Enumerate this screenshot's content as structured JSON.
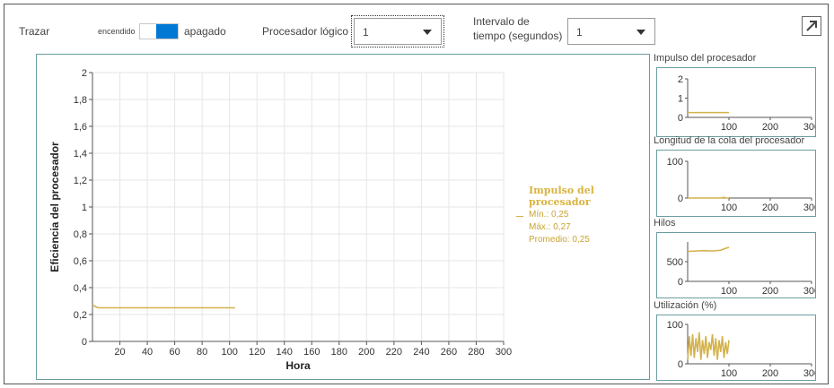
{
  "toolbar": {
    "trace_label": "Trazar",
    "toggle_on_label": "encendido",
    "toggle_off_label": "apagado",
    "logical_processor_label": "Procesador lógico",
    "logical_processor_value": "1",
    "interval_label_line1": "Intervalo de",
    "interval_label_line2": "tiempo (segundos)",
    "interval_value": "1"
  },
  "colors": {
    "series": "#d4b24c",
    "accent": "#0078d4",
    "panel_border": "#6b9da0"
  },
  "main_chart": {
    "legend_title_line1": "Impulso del",
    "legend_title_line2": "procesador",
    "legend_min": "Mín.: 0,25",
    "legend_max": "Máx.: 0,27",
    "legend_avg": "Promedio: 0,25"
  },
  "side_charts": {
    "c1_title": "Impulso del procesador",
    "c2_title": "Longitud de la cola del procesador",
    "c3_title": "Hilos",
    "c4_title": "Utilización (%)"
  },
  "chart_data": [
    {
      "type": "line",
      "title": "",
      "xlabel": "Hora",
      "ylabel": "Eficiencia del procesador",
      "xlim": [
        0,
        300
      ],
      "ylim": [
        0,
        2
      ],
      "x_ticks": [
        "20",
        "40",
        "60",
        "80",
        "100",
        "120",
        "140",
        "160",
        "180",
        "200",
        "220",
        "240",
        "260",
        "280",
        "300"
      ],
      "y_ticks": [
        "0",
        "0,2",
        "0,4",
        "0,6",
        "0,8",
        "1",
        "1,2",
        "1,4",
        "1,6",
        "1,8",
        "2"
      ],
      "grid": true,
      "legend_position": "right",
      "series": [
        {
          "name": "Impulso del procesador",
          "x": [
            0,
            2,
            4,
            6,
            10,
            20,
            40,
            60,
            80,
            100,
            104
          ],
          "y": [
            0.27,
            0.26,
            0.25,
            0.25,
            0.25,
            0.25,
            0.25,
            0.25,
            0.25,
            0.25,
            0.25
          ]
        }
      ]
    },
    {
      "type": "line",
      "title": "Impulso del procesador",
      "xlim": [
        0,
        300
      ],
      "ylim": [
        0,
        2
      ],
      "x_ticks": [
        "100",
        "200",
        "300"
      ],
      "y_ticks": [
        "0",
        "1",
        "2"
      ],
      "series": [
        {
          "x": [
            0,
            100
          ],
          "y": [
            0.25,
            0.25
          ]
        }
      ]
    },
    {
      "type": "line",
      "title": "Longitud de la cola del procesador",
      "xlim": [
        0,
        300
      ],
      "ylim": [
        0,
        100
      ],
      "x_ticks": [
        "100",
        "200",
        "300"
      ],
      "y_ticks": [
        "0",
        "100"
      ],
      "series": [
        {
          "x": [
            0,
            80,
            88,
            92,
            100
          ],
          "y": [
            0,
            0,
            2,
            0,
            0
          ]
        }
      ]
    },
    {
      "type": "line",
      "title": "Hilos",
      "xlim": [
        0,
        300
      ],
      "ylim": [
        0,
        1000
      ],
      "x_ticks": [
        "100",
        "200",
        "300"
      ],
      "y_ticks": [
        "0",
        "500"
      ],
      "series": [
        {
          "x": [
            0,
            20,
            40,
            60,
            80,
            90,
            95,
            100
          ],
          "y": [
            760,
            770,
            780,
            770,
            790,
            830,
            850,
            860
          ]
        }
      ]
    },
    {
      "type": "line",
      "title": "Utilización (%)",
      "xlim": [
        0,
        300
      ],
      "ylim": [
        0,
        100
      ],
      "x_ticks": [
        "100",
        "200",
        "300"
      ],
      "y_ticks": [
        "0",
        "100"
      ],
      "series": [
        {
          "x": [
            0,
            4,
            8,
            12,
            16,
            20,
            24,
            28,
            32,
            36,
            40,
            44,
            48,
            52,
            56,
            60,
            64,
            68,
            72,
            76,
            80,
            84,
            88,
            92,
            96,
            100
          ],
          "y": [
            10,
            70,
            20,
            75,
            15,
            65,
            30,
            80,
            10,
            60,
            25,
            70,
            15,
            55,
            35,
            75,
            20,
            65,
            10,
            60,
            30,
            70,
            15,
            55,
            25,
            60
          ]
        }
      ]
    }
  ]
}
